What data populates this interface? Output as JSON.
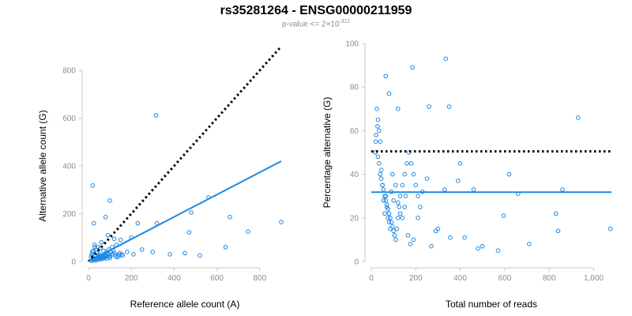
{
  "title": "rs35281264 - ENSG00000211959",
  "subtitle": {
    "text": "p-value <= 2×10",
    "exponent": "-311"
  },
  "colors": {
    "points": "#1e88e5",
    "fit": "#1e88e5",
    "reference": "#000000",
    "tick_text": "#8c8c8c"
  },
  "chart_data": [
    {
      "type": "scatter",
      "title": "",
      "xlabel": "Reference allele count (A)",
      "ylabel": "Alternative allele count (G)",
      "xlim": [
        0,
        900
      ],
      "ylim": [
        0,
        800
      ],
      "xticks": [
        0,
        200,
        400,
        600,
        800
      ],
      "yticks": [
        0,
        200,
        400,
        600,
        800
      ],
      "grid": false,
      "lines": [
        {
          "style": "dotted",
          "color": "#000000",
          "x": [
            0,
            900
          ],
          "y": [
            0,
            900
          ]
        },
        {
          "style": "solid",
          "color": "#1e88e5",
          "x": [
            0,
            900
          ],
          "y": [
            0,
            420
          ]
        }
      ],
      "points": {
        "x": [
          315,
          20,
          25,
          80,
          100,
          30,
          560,
          470,
          660,
          745,
          900,
          480,
          230,
          200,
          150,
          120,
          90,
          60,
          45,
          35,
          28,
          22,
          18,
          15,
          12,
          40,
          55,
          70,
          85,
          95,
          110,
          130,
          145,
          160,
          180,
          210,
          250,
          300,
          320,
          380,
          450,
          520,
          640,
          20,
          30,
          50,
          65,
          75,
          88,
          100,
          105,
          115,
          125,
          140,
          155,
          25,
          38,
          48,
          58,
          68,
          78,
          85,
          95,
          18,
          28,
          42,
          52,
          62,
          72,
          82,
          92,
          102,
          112,
          122,
          132,
          142,
          35,
          45,
          55,
          65,
          75,
          15,
          22,
          30,
          38,
          46,
          54,
          62,
          70,
          78
        ],
        "y": [
          612,
          318,
          160,
          186,
          255,
          60,
          268,
          122,
          186,
          125,
          165,
          205,
          160,
          100,
          90,
          95,
          110,
          80,
          60,
          50,
          70,
          45,
          40,
          30,
          20,
          35,
          55,
          45,
          40,
          50,
          60,
          70,
          35,
          25,
          40,
          30,
          50,
          40,
          160,
          30,
          35,
          25,
          60,
          20,
          25,
          30,
          20,
          28,
          35,
          15,
          40,
          45,
          25,
          20,
          30,
          10,
          15,
          20,
          25,
          18,
          22,
          12,
          30,
          8,
          10,
          14,
          18,
          12,
          16,
          24,
          20,
          22,
          30,
          35,
          18,
          28,
          5,
          8,
          10,
          12,
          15,
          3,
          6,
          9,
          12,
          14,
          16,
          20,
          22,
          26
        ]
      }
    },
    {
      "type": "scatter",
      "title": "",
      "xlabel": "Total number of reads",
      "ylabel": "Percentage alternative (G)",
      "xlim": [
        0,
        1080
      ],
      "ylim": [
        0,
        100
      ],
      "xticks": [
        0,
        200,
        400,
        600,
        800,
        1000
      ],
      "xtick_labels": [
        "0",
        "200",
        "400",
        "600",
        "800",
        "1,000"
      ],
      "yticks": [
        0,
        20,
        40,
        60,
        80,
        100
      ],
      "grid": false,
      "lines": [
        {
          "style": "dotted",
          "color": "#000000",
          "y": 50.5
        },
        {
          "style": "solid",
          "color": "#1e88e5",
          "y": 31.8
        }
      ],
      "points": {
        "x": [
          335,
          185,
          65,
          80,
          120,
          260,
          350,
          930,
          1075,
          860,
          830,
          840,
          710,
          660,
          620,
          595,
          570,
          500,
          480,
          460,
          420,
          400,
          390,
          355,
          330,
          300,
          290,
          270,
          250,
          230,
          210,
          190,
          175,
          165,
          155,
          150,
          140,
          130,
          120,
          110,
          100,
          95,
          90,
          85,
          80,
          75,
          70,
          65,
          60,
          55,
          50,
          45,
          40,
          35,
          30,
          28,
          25,
          22,
          20,
          18,
          30,
          35,
          40,
          45,
          50,
          55,
          60,
          65,
          70,
          75,
          80,
          85,
          90,
          95,
          100,
          105,
          110,
          115,
          120,
          125,
          130,
          140,
          150,
          160,
          170,
          180,
          190,
          200,
          210,
          220
        ],
        "y": [
          93,
          89,
          85,
          77,
          70,
          71,
          71,
          66,
          15,
          33,
          22,
          14,
          8,
          31,
          40,
          21,
          5,
          7,
          6,
          33,
          11,
          45,
          37,
          11,
          33,
          15,
          14,
          7,
          38,
          32,
          20,
          10,
          8,
          12,
          30,
          25,
          20,
          22,
          27,
          35,
          28,
          40,
          32,
          15,
          18,
          20,
          25,
          30,
          22,
          28,
          35,
          42,
          55,
          60,
          65,
          62,
          70,
          58,
          55,
          50,
          48,
          45,
          40,
          38,
          35,
          33,
          30,
          28,
          26,
          24,
          22,
          20,
          18,
          16,
          14,
          12,
          10,
          15,
          20,
          25,
          30,
          35,
          40,
          45,
          50,
          45,
          40,
          35,
          30,
          25
        ]
      }
    }
  ]
}
